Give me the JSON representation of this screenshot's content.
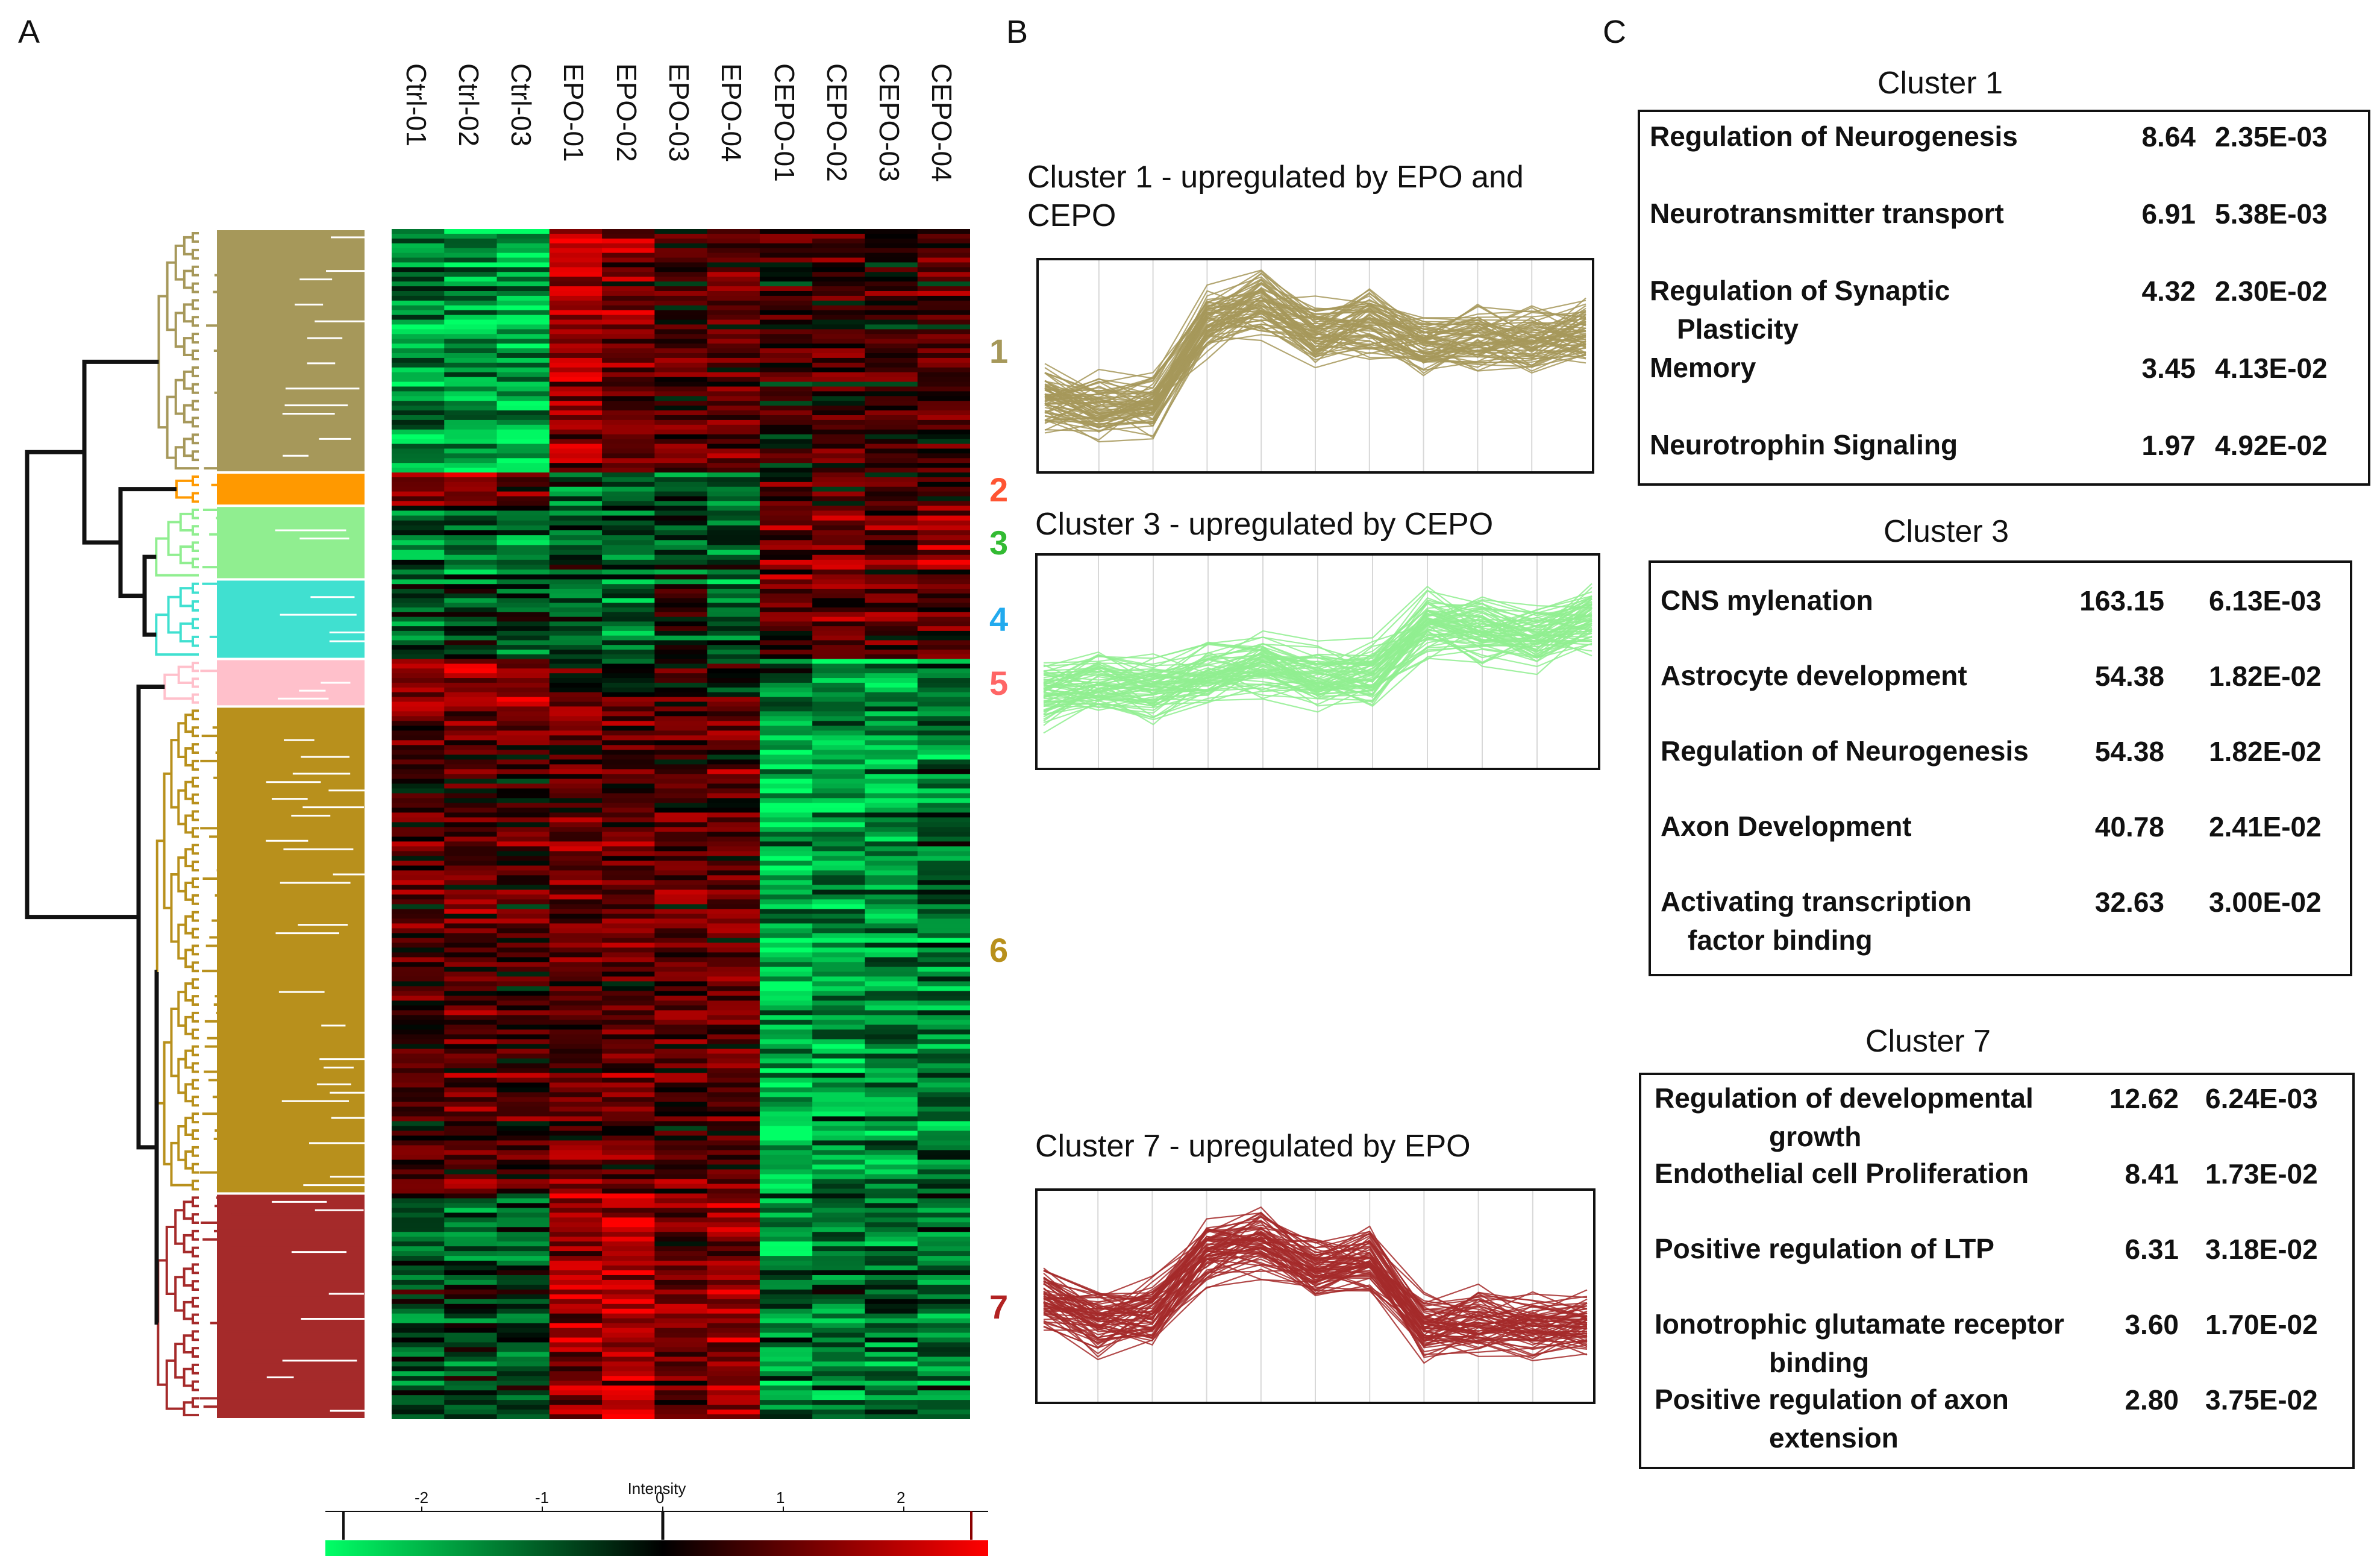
{
  "panels": {
    "a": "A",
    "b": "B",
    "c": "C"
  },
  "colors": {
    "c1": "#a6985a",
    "c2": "#ff9900",
    "c3": "#90ee90",
    "c4": "#40e0d0",
    "c5": "#ffc0cb",
    "c6": "#b8901c",
    "c7": "#a52a2a",
    "num1": "#a6985a",
    "num2": "#ff5533",
    "num3": "#33bb33",
    "num4": "#22aaee",
    "num5": "#ff6666",
    "num6": "#b8901c",
    "num7": "#b22222",
    "heat_low": "#00ff66",
    "heat_mid": "#000000",
    "heat_high": "#ff0000"
  },
  "chart_data": [
    {
      "type": "heatmap",
      "columns": [
        "Ctrl-01",
        "Ctrl-02",
        "Ctrl-03",
        "EPO-01",
        "EPO-02",
        "EPO-03",
        "EPO-04",
        "CEPO-01",
        "CEPO-02",
        "CEPO-03",
        "CEPO-04"
      ],
      "clusters": [
        {
          "label": "1",
          "share": 0.205,
          "profile": [
            -1.2,
            -1.4,
            -1.6,
            1.2,
            1.0,
            0.5,
            0.7,
            0.2,
            0.4,
            0.3,
            0.5
          ]
        },
        {
          "label": "2",
          "share": 0.028,
          "profile": [
            1.1,
            1.3,
            0.9,
            -1.0,
            -0.8,
            -0.9,
            -1.0,
            0.5,
            0.4,
            0.2,
            0.3
          ]
        },
        {
          "label": "3",
          "share": 0.062,
          "profile": [
            -0.8,
            -0.7,
            -0.9,
            -0.6,
            -0.7,
            -0.5,
            -0.6,
            1.0,
            1.1,
            0.9,
            1.2
          ]
        },
        {
          "label": "4",
          "share": 0.067,
          "profile": [
            -0.6,
            -0.5,
            -0.7,
            -0.8,
            -1.0,
            -0.2,
            -0.9,
            0.9,
            1.0,
            0.8,
            0.7
          ]
        },
        {
          "label": "5",
          "share": 0.04,
          "profile": [
            1.3,
            1.5,
            1.1,
            0.2,
            0.1,
            0.3,
            0.2,
            -1.0,
            -1.2,
            -1.3,
            -0.9
          ]
        },
        {
          "label": "6",
          "share": 0.41,
          "profile": [
            0.6,
            0.7,
            0.5,
            0.8,
            0.7,
            0.6,
            0.7,
            -1.6,
            -1.4,
            -1.3,
            -1.1
          ]
        },
        {
          "label": "7",
          "share": 0.19,
          "profile": [
            -0.4,
            -0.6,
            -0.5,
            1.3,
            1.5,
            1.0,
            1.2,
            -1.2,
            -1.0,
            -0.9,
            -0.8
          ]
        }
      ],
      "colorbar": {
        "title": "Intensity",
        "ticks": [
          -2,
          -1,
          0,
          1,
          2
        ],
        "range": [
          -2.8,
          2.7
        ]
      }
    },
    {
      "type": "line",
      "title": "Cluster 1 - upregulated by EPO and CEPO",
      "x": [
        1,
        2,
        3,
        4,
        5,
        6,
        7,
        8,
        9,
        10,
        11
      ],
      "mean": [
        -0.4,
        -0.5,
        -0.45,
        0.55,
        0.75,
        0.4,
        0.5,
        0.25,
        0.35,
        0.3,
        0.4
      ],
      "ylim": [
        -1.2,
        1.2
      ]
    },
    {
      "type": "line",
      "title": "Cluster 3 - upregulated by CEPO",
      "x": [
        1,
        2,
        3,
        4,
        5,
        6,
        7,
        8,
        9,
        10,
        11
      ],
      "mean": [
        -0.4,
        -0.3,
        -0.35,
        -0.15,
        -0.05,
        -0.2,
        -0.15,
        0.45,
        0.4,
        0.3,
        0.5
      ],
      "ylim": [
        -1.2,
        1.2
      ]
    },
    {
      "type": "line",
      "title": "Cluster 7 - upregulated by EPO",
      "x": [
        1,
        2,
        3,
        4,
        5,
        6,
        7,
        8,
        9,
        10,
        11
      ],
      "mean": [
        -0.05,
        -0.3,
        -0.2,
        0.5,
        0.65,
        0.35,
        0.45,
        -0.4,
        -0.3,
        -0.35,
        -0.3
      ],
      "ylim": [
        -1.2,
        1.2
      ]
    },
    {
      "type": "table",
      "title": "Cluster 1",
      "rows": [
        {
          "term": [
            "Regulation of Neurogenesis"
          ],
          "fold": "8.64",
          "p": "2.35E-03"
        },
        {
          "term": [
            "Neurotransmitter transport"
          ],
          "fold": "6.91",
          "p": "5.38E-03"
        },
        {
          "term": [
            "Regulation of Synaptic",
            "Plasticity"
          ],
          "fold": "4.32",
          "p": "2.30E-02"
        },
        {
          "term": [
            "Memory"
          ],
          "fold": "3.45",
          "p": "4.13E-02"
        },
        {
          "term": [
            "Neurotrophin Signaling"
          ],
          "fold": "1.97",
          "p": "4.92E-02"
        }
      ]
    },
    {
      "type": "table",
      "title": "Cluster 3",
      "rows": [
        {
          "term": [
            "CNS mylenation"
          ],
          "fold": "163.15",
          "p": "6.13E-03"
        },
        {
          "term": [
            "Astrocyte development"
          ],
          "fold": "54.38",
          "p": "1.82E-02"
        },
        {
          "term": [
            "Regulation of Neurogenesis"
          ],
          "fold": "54.38",
          "p": "1.82E-02"
        },
        {
          "term": [
            "Axon Development"
          ],
          "fold": "40.78",
          "p": "2.41E-02"
        },
        {
          "term": [
            "Activating transcription",
            "factor binding"
          ],
          "fold": "32.63",
          "p": "3.00E-02"
        }
      ]
    },
    {
      "type": "table",
      "title": "Cluster 7",
      "rows": [
        {
          "term": [
            "Regulation of developmental",
            "growth"
          ],
          "fold": "12.62",
          "p": "6.24E-03"
        },
        {
          "term": [
            "Endothelial cell Proliferation"
          ],
          "fold": "8.41",
          "p": "1.73E-02"
        },
        {
          "term": [
            "Positive regulation of LTP"
          ],
          "fold": "6.31",
          "p": "3.18E-02"
        },
        {
          "term": [
            "Ionotrophic glutamate receptor",
            "binding"
          ],
          "fold": "3.60",
          "p": "1.70E-02"
        },
        {
          "term": [
            "Positive regulation of axon",
            "extension"
          ],
          "fold": "2.80",
          "p": "3.75E-02"
        }
      ]
    }
  ]
}
